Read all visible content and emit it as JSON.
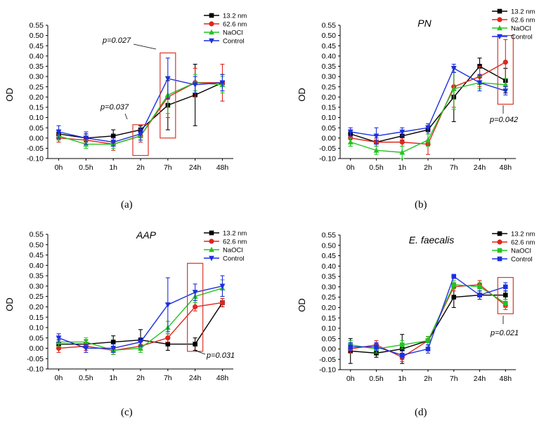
{
  "chart_data": [
    {
      "type": "line",
      "panel": "(a)",
      "title": "",
      "ylabel": "OD",
      "xlabel": "",
      "ylim": [
        -0.1,
        0.55
      ],
      "yticks": [
        "0.55",
        "0.50",
        "0.45",
        "0.40",
        "0.35",
        "0.30",
        "0.25",
        "0.20",
        "0.15",
        "0.10",
        "0.05",
        "0.00",
        "-0.05",
        "-0.10"
      ],
      "categories": [
        "0h",
        "0.5h",
        "1h",
        "2h",
        "7h",
        "24h",
        "48h"
      ],
      "legend_position": "top-right",
      "series": [
        {
          "name": "13.2 nm",
          "color": "#000000",
          "marker": "square",
          "values": [
            0.02,
            0.0,
            0.01,
            0.04,
            0.16,
            0.21,
            0.27
          ],
          "errors": [
            0.02,
            0.02,
            0.03,
            0.02,
            0.12,
            0.15,
            0.04
          ]
        },
        {
          "name": "62.6 nm",
          "color": "#e0261c",
          "marker": "circle",
          "values": [
            0.0,
            -0.01,
            -0.03,
            0.01,
            0.2,
            0.27,
            0.27
          ],
          "errors": [
            0.02,
            0.02,
            0.03,
            0.03,
            0.1,
            0.07,
            0.09
          ]
        },
        {
          "name": "NaOCl",
          "color": "#22c422",
          "marker": "triangle-up",
          "values": [
            0.01,
            -0.03,
            -0.03,
            0.01,
            0.21,
            0.27,
            0.26
          ],
          "errors": [
            0.02,
            0.02,
            0.02,
            0.02,
            0.09,
            0.04,
            0.04
          ]
        },
        {
          "name": "Control",
          "color": "#1c2fe0",
          "marker": "triangle-down",
          "values": [
            0.03,
            0.0,
            -0.02,
            0.02,
            0.29,
            0.26,
            0.27
          ],
          "errors": [
            0.03,
            0.03,
            0.02,
            0.03,
            0.1,
            0.04,
            0.04
          ]
        }
      ],
      "annotations": [
        {
          "text": "p=0.027",
          "category": "7h"
        },
        {
          "text": "p=0.037",
          "category": "2h"
        }
      ]
    },
    {
      "type": "line",
      "panel": "(b)",
      "title": "PN",
      "ylabel": "OD",
      "xlabel": "",
      "ylim": [
        -0.1,
        0.55
      ],
      "yticks": [
        "0.55",
        "0.50",
        "0.45",
        "0.40",
        "0.35",
        "0.30",
        "0.25",
        "0.20",
        "0.15",
        "0.10",
        "0.05",
        "0.00",
        "-0.05",
        "-0.10"
      ],
      "categories": [
        "0h",
        "0.5h",
        "1h",
        "2h",
        "7h",
        "24h",
        "48h"
      ],
      "legend_position": "top-right",
      "series": [
        {
          "name": "13.2 nm",
          "color": "#000000",
          "marker": "square",
          "values": [
            0.02,
            -0.02,
            0.01,
            0.04,
            0.2,
            0.35,
            0.28
          ],
          "errors": [
            0.02,
            0.02,
            0.02,
            0.02,
            0.12,
            0.04,
            0.06
          ]
        },
        {
          "name": "62.6 nm",
          "color": "#e0261c",
          "marker": "circle",
          "values": [
            0.0,
            -0.02,
            -0.02,
            -0.03,
            0.25,
            0.3,
            0.37
          ],
          "errors": [
            0.04,
            0.02,
            0.02,
            0.05,
            0.1,
            0.05,
            0.11
          ]
        },
        {
          "name": "NaOCl",
          "color": "#22c422",
          "marker": "triangle-up",
          "values": [
            -0.02,
            -0.06,
            -0.07,
            -0.01,
            0.24,
            0.27,
            0.26
          ],
          "errors": [
            0.02,
            0.02,
            0.03,
            0.03,
            0.1,
            0.03,
            0.03
          ]
        },
        {
          "name": "Control",
          "color": "#1c2fe0",
          "marker": "triangle-down",
          "values": [
            0.03,
            0.01,
            0.03,
            0.05,
            0.34,
            0.27,
            0.23
          ],
          "errors": [
            0.02,
            0.04,
            0.02,
            0.02,
            0.02,
            0.04,
            0.02
          ]
        }
      ],
      "annotations": [
        {
          "text": "p=0.042",
          "category": "48h"
        }
      ]
    },
    {
      "type": "line",
      "panel": "(c)",
      "title": "AAP",
      "ylabel": "OD",
      "xlabel": "",
      "ylim": [
        -0.1,
        0.55
      ],
      "yticks": [
        "0.55",
        "0.50",
        "0.45",
        "0.40",
        "0.35",
        "0.30",
        "0.25",
        "0.20",
        "0.15",
        "0.10",
        "0.05",
        "0.00",
        "-0.05",
        "-0.10"
      ],
      "categories": [
        "0h",
        "0.5h",
        "1h",
        "2h",
        "7h",
        "24h",
        "48h"
      ],
      "legend_position": "top-right",
      "series": [
        {
          "name": "13.2 nm",
          "color": "#000000",
          "marker": "square",
          "values": [
            0.02,
            0.02,
            0.03,
            0.04,
            0.02,
            0.02,
            0.22
          ],
          "errors": [
            0.02,
            0.02,
            0.03,
            0.05,
            0.03,
            0.03,
            0.02
          ]
        },
        {
          "name": "62.6 nm",
          "color": "#e0261c",
          "marker": "circle",
          "values": [
            0.0,
            0.01,
            -0.01,
            0.01,
            0.05,
            0.2,
            0.22
          ],
          "errors": [
            0.02,
            0.02,
            0.02,
            0.02,
            0.02,
            0.02,
            0.02
          ]
        },
        {
          "name": "NaOCl",
          "color": "#22c422",
          "marker": "triangle-up",
          "values": [
            0.03,
            0.03,
            -0.01,
            0.0,
            0.1,
            0.25,
            0.29
          ],
          "errors": [
            0.02,
            0.02,
            0.02,
            0.02,
            0.03,
            0.03,
            0.04
          ]
        },
        {
          "name": "Control",
          "color": "#1c2fe0",
          "marker": "triangle-down",
          "values": [
            0.05,
            0.0,
            0.0,
            0.03,
            0.21,
            0.27,
            0.3
          ],
          "errors": [
            0.02,
            0.02,
            0.02,
            0.02,
            0.13,
            0.04,
            0.05
          ]
        }
      ],
      "annotations": [
        {
          "text": "p=0.031",
          "category": "24h"
        }
      ]
    },
    {
      "type": "line",
      "panel": "(d)",
      "title": "E. faecalis",
      "ylabel": "OD",
      "xlabel": "",
      "ylim": [
        -0.1,
        0.55
      ],
      "yticks": [
        "0.55",
        "0.50",
        "0.45",
        "0.40",
        "0.35",
        "0.30",
        "0.25",
        "0.20",
        "0.15",
        "0.10",
        "0.05",
        "0.00",
        "-0.05",
        "-0.10"
      ],
      "categories": [
        "0h",
        "0.5h",
        "1h",
        "2h",
        "7h",
        "24h",
        "48h"
      ],
      "legend_position": "top-right",
      "series": [
        {
          "name": "13.2 nm",
          "color": "#000000",
          "marker": "square",
          "values": [
            -0.01,
            -0.02,
            0.0,
            0.04,
            0.25,
            0.26,
            0.26
          ],
          "errors": [
            0.06,
            0.02,
            0.07,
            0.02,
            0.05,
            0.02,
            0.02
          ]
        },
        {
          "name": "62.6 nm",
          "color": "#e0261c",
          "marker": "circle",
          "values": [
            0.0,
            0.02,
            -0.04,
            0.04,
            0.3,
            0.31,
            0.21
          ],
          "errors": [
            0.02,
            0.02,
            0.02,
            0.02,
            0.02,
            0.02,
            0.02
          ]
        },
        {
          "name": "NaOCl",
          "color": "#22c422",
          "marker": "square",
          "values": [
            0.02,
            0.0,
            0.02,
            0.04,
            0.31,
            0.3,
            0.22
          ],
          "errors": [
            0.02,
            0.02,
            0.02,
            0.02,
            0.02,
            0.02,
            0.02
          ]
        },
        {
          "name": "Control",
          "color": "#1c2fe0",
          "marker": "square",
          "values": [
            0.01,
            0.01,
            -0.03,
            0.0,
            0.35,
            0.26,
            0.3
          ],
          "errors": [
            0.02,
            0.02,
            0.02,
            0.02,
            0.01,
            0.02,
            0.02
          ]
        }
      ],
      "annotations": [
        {
          "text": "p=0.021",
          "category": "48h"
        }
      ]
    }
  ],
  "highlight_color": "#d9362b"
}
